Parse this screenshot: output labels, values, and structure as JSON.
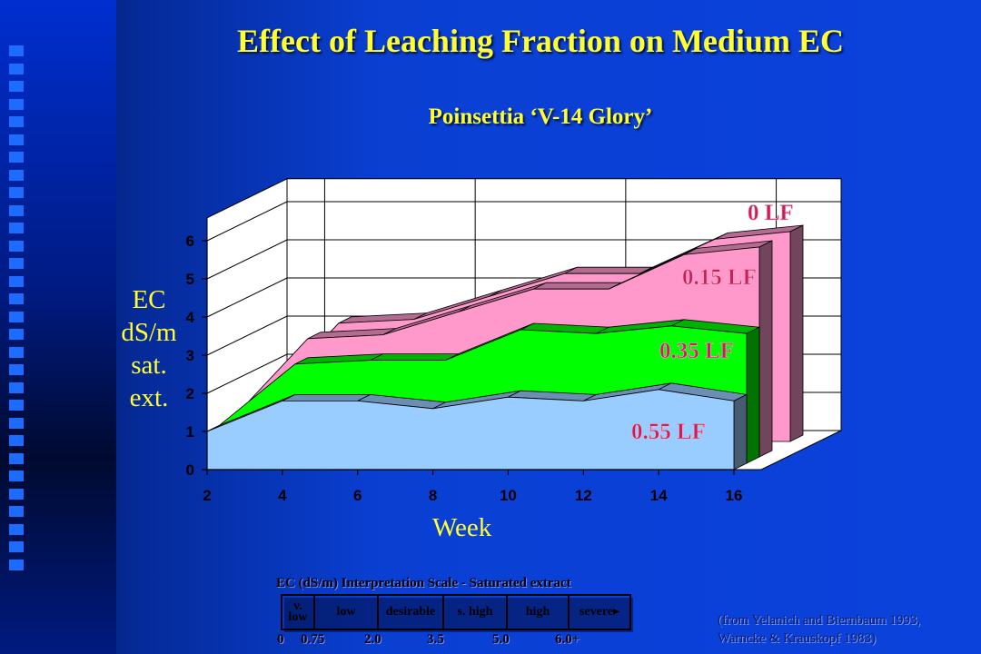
{
  "slide": {
    "title": "Effect of Leaching Fraction on Medium EC",
    "subtitle": "Poinsettia ‘V-14 Glory’",
    "source_line1": "(from Yelanich and Biernbaum 1993,",
    "source_line2": "Warncke & Krauskopf 1983)"
  },
  "chart_data": {
    "type": "area",
    "style": "3d-stacked-depth",
    "title": "Poinsettia ‘V-14 Glory’",
    "xlabel": "Week",
    "ylabel_lines": [
      "EC",
      "dS/m",
      "sat.",
      "ext."
    ],
    "x_ticks": [
      2,
      4,
      6,
      8,
      10,
      12,
      14,
      16
    ],
    "y_ticks": [
      0,
      1,
      2,
      3,
      4,
      5,
      6
    ],
    "x": [
      2,
      4,
      6,
      8,
      10,
      12,
      14,
      16
    ],
    "xlim": [
      2,
      16
    ],
    "ylim": [
      0,
      6
    ],
    "series": [
      {
        "name": "0.55 LF",
        "color": "#99ccff",
        "values": [
          1.0,
          1.8,
          1.8,
          1.6,
          1.9,
          1.8,
          2.1,
          1.8
        ]
      },
      {
        "name": "0.35 LF",
        "color": "#00ff00",
        "values": [
          1.0,
          2.6,
          2.7,
          2.7,
          3.5,
          3.4,
          3.6,
          3.4
        ]
      },
      {
        "name": "0.15 LF",
        "color": "#ff99cc",
        "values": [
          1.0,
          3.1,
          3.2,
          3.8,
          4.4,
          4.4,
          5.3,
          5.5
        ]
      },
      {
        "name": "0 LF",
        "color": "#ff99cc",
        "values": [
          1.0,
          3.1,
          3.2,
          3.8,
          4.4,
          4.4,
          5.3,
          5.5
        ]
      }
    ]
  },
  "scale": {
    "title": "EC (dS/m) Interpretation Scale - Saturated extract",
    "segments": [
      {
        "label1": "v.",
        "label2": "low",
        "color": "#a6c8ff"
      },
      {
        "label1": "low",
        "label2": "",
        "color": "#7fb0ff"
      },
      {
        "label1": "desirable",
        "label2": "",
        "color": "#00ff00"
      },
      {
        "label1": "s. high",
        "label2": "",
        "color": "#f2d010"
      },
      {
        "label1": "high",
        "label2": "",
        "color": "#ff99aa"
      },
      {
        "label1": "severe▸",
        "label2": "",
        "color": "#ff1a1a"
      }
    ],
    "boundaries": [
      "0",
      "0.75",
      "2.0",
      "3.5",
      "5.0",
      "6.0+"
    ]
  }
}
